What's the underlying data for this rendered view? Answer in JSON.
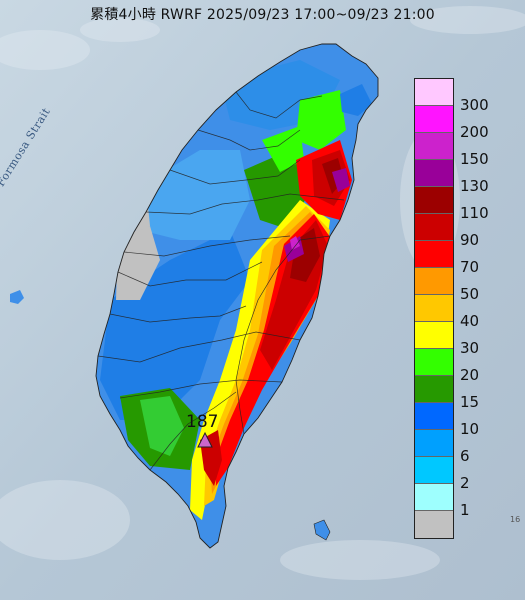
{
  "title": "累積4小時 RWRF 2025/09/23 17:00~09/23 21:00",
  "sea_label": "Formosa Strait",
  "max_label": "187",
  "corner_text": "16",
  "colors": {
    "sea": "#b7c9d7",
    "land_base": "#3f8fe8"
  },
  "legend": [
    {
      "label": "300",
      "color": "#ffc8ff"
    },
    {
      "label": "200",
      "color": "#ff14ff"
    },
    {
      "label": "150",
      "color": "#cc22cc"
    },
    {
      "label": "130",
      "color": "#990099"
    },
    {
      "label": "110",
      "color": "#9c0000"
    },
    {
      "label": "90",
      "color": "#cc0000"
    },
    {
      "label": "70",
      "color": "#ff0000"
    },
    {
      "label": "50",
      "color": "#ff9900"
    },
    {
      "label": "40",
      "color": "#ffc800"
    },
    {
      "label": "30",
      "color": "#ffff00"
    },
    {
      "label": "20",
      "color": "#33ff00"
    },
    {
      "label": "15",
      "color": "#269900"
    },
    {
      "label": "10",
      "color": "#0068ff"
    },
    {
      "label": "6",
      "color": "#00a0fe"
    },
    {
      "label": "2",
      "color": "#00c8ff"
    },
    {
      "label": "1",
      "color": "#9efffe"
    },
    {
      "label": "",
      "color": "#c1c1c1"
    }
  ]
}
